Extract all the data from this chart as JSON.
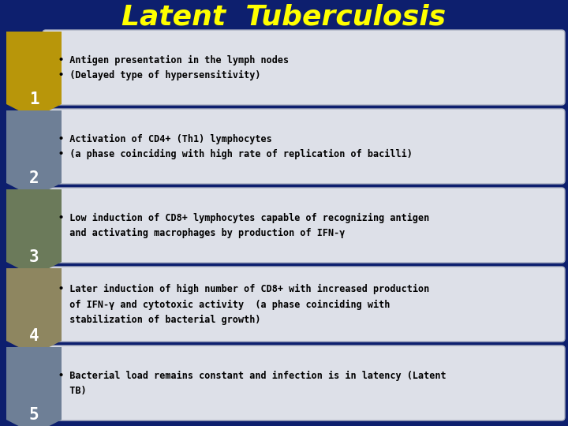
{
  "title": "Latent  Tuberculosis",
  "title_color": "#FFFF00",
  "background_color": "#0d1f6e",
  "rows": [
    {
      "number": "1",
      "arrow_color": "#b8960a",
      "text": "• Antigen presentation in the lymph nodes\n• (Delayed type of hypersensitivity)"
    },
    {
      "number": "2",
      "arrow_color": "#6e7f96",
      "text": "• Activation of CD4+ (Th1) lymphocytes\n• (a phase coinciding with high rate of replication of bacilli)"
    },
    {
      "number": "3",
      "arrow_color": "#6b7a5a",
      "text": "• Low induction of CD8+ lymphocytes capable of recognizing antigen\n  and activating macrophages by production of IFN-γ"
    },
    {
      "number": "4",
      "arrow_color": "#8e8660",
      "text": "• Later induction of high number of CD8+ with increased production\n  of IFN-γ and cytotoxic activity  (a phase coinciding with\n  stabilization of bacterial growth)"
    },
    {
      "number": "5",
      "arrow_color": "#6e7f96",
      "text": "• Bacterial load remains constant and infection is in latency (Latent\n  TB)"
    }
  ],
  "box_color": "#dde0e8",
  "box_edge_color": "#aab0c0",
  "number_color": "#ffffff",
  "text_color": "#000000",
  "title_fontsize": 26,
  "number_fontsize": 15,
  "text_fontsize": 8.5
}
